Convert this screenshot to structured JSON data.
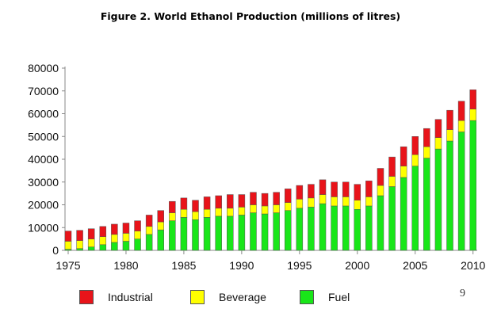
{
  "title": "Figure 2. World Ethanol Production (millions of litres)",
  "page_number": "9",
  "colors": {
    "industrial": "#e8141a",
    "beverage": "#ffff00",
    "fuel": "#19e619",
    "axis": "#888888"
  },
  "chart_data": {
    "type": "bar",
    "stacked": true,
    "title": "Figure 2. World Ethanol Production (millions of litres)",
    "xlabel": "",
    "ylabel": "",
    "ylim": [
      0,
      80000
    ],
    "yticks": [
      0,
      10000,
      20000,
      30000,
      40000,
      50000,
      60000,
      70000,
      80000
    ],
    "xticks": [
      "1975",
      "1980",
      "1985",
      "1990",
      "1995",
      "2000",
      "2005",
      "2010"
    ],
    "categories": [
      "1975",
      "1976",
      "1977",
      "1978",
      "1979",
      "1980",
      "1981",
      "1982",
      "1983",
      "1984",
      "1985",
      "1986",
      "1987",
      "1988",
      "1989",
      "1990",
      "1991",
      "1992",
      "1993",
      "1994",
      "1995",
      "1996",
      "1997",
      "1998",
      "1999",
      "2000",
      "2001",
      "2002",
      "2003",
      "2004",
      "2005",
      "2006",
      "2007",
      "2008",
      "2009",
      "2010"
    ],
    "legend_position": "bottom",
    "series": [
      {
        "name": "Fuel",
        "color": "#19e619",
        "values": [
          500,
          800,
          1500,
          2500,
          3500,
          4000,
          5000,
          7000,
          9000,
          13000,
          14500,
          13500,
          14500,
          15000,
          15000,
          15500,
          16500,
          16000,
          16500,
          17500,
          18500,
          19000,
          20500,
          19500,
          19500,
          18000,
          19500,
          24000,
          28000,
          32000,
          37000,
          40500,
          44500,
          48000,
          52000,
          57000
        ]
      },
      {
        "name": "Beverage",
        "color": "#ffff00",
        "values": [
          3500,
          3500,
          3500,
          3500,
          3500,
          3500,
          3500,
          3500,
          3500,
          3500,
          3500,
          3500,
          3500,
          3500,
          3500,
          3500,
          3500,
          3500,
          3500,
          3500,
          4000,
          4000,
          4000,
          4000,
          4000,
          4000,
          4000,
          4500,
          4500,
          5000,
          5000,
          5000,
          5000,
          5000,
          5000,
          5000
        ]
      },
      {
        "name": "Industrial",
        "color": "#e8141a",
        "values": [
          4500,
          4500,
          4500,
          4500,
          4500,
          4500,
          4500,
          5000,
          5000,
          5000,
          5000,
          5000,
          5500,
          5500,
          6000,
          5500,
          5500,
          5500,
          5500,
          6000,
          6000,
          6000,
          6500,
          6500,
          6500,
          7000,
          7000,
          7500,
          8500,
          8500,
          8000,
          8000,
          8000,
          8500,
          8500,
          8500
        ]
      }
    ]
  },
  "legend": [
    {
      "label": "Industrial",
      "color": "#e8141a"
    },
    {
      "label": "Beverage",
      "color": "#ffff00"
    },
    {
      "label": "Fuel",
      "color": "#19e619"
    }
  ]
}
